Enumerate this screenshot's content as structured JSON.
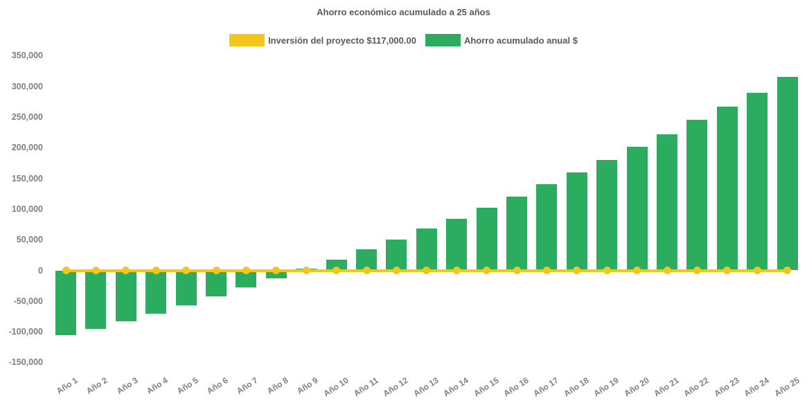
{
  "title": "Ahorro económico acumulado a 25 años",
  "legend": {
    "items": [
      {
        "label": "Inversión del proyecto $117,000.00",
        "color": "#F4C51B"
      },
      {
        "label": "Ahorro acumulado anual $",
        "color": "#2CAC5E"
      }
    ]
  },
  "colors": {
    "background": "#ffffff",
    "bar_green": "#2CAC5E",
    "line_yellow": "#F4C51B",
    "title_text": "#595959",
    "axis_text": "#7f7f7f"
  },
  "chart_data": {
    "type": "bar",
    "title": "Ahorro económico acumulado a 25 años",
    "categories": [
      "Año 1",
      "Año 2",
      "Año 3",
      "Año 4",
      "Año 5",
      "Año 6",
      "Año 7",
      "Año 8",
      "Año 9",
      "Año 10",
      "Año 11",
      "Año 12",
      "Año 13",
      "Año 14",
      "Año 15",
      "Año 16",
      "Año 17",
      "Año 18",
      "Año 19",
      "Año 20",
      "Año 21",
      "Año 22",
      "Año 23",
      "Año 24",
      "Año 25"
    ],
    "series": [
      {
        "name": "Inversión del proyecto $117,000.00",
        "type": "line",
        "color": "#F4C51B",
        "investment_amount_label": "$117,000.00",
        "values": [
          0,
          0,
          0,
          0,
          0,
          0,
          0,
          0,
          0,
          0,
          0,
          0,
          0,
          0,
          0,
          0,
          0,
          0,
          0,
          0,
          0,
          0,
          0,
          0,
          0
        ]
      },
      {
        "name": "Ahorro acumulado anual $",
        "type": "bar",
        "color": "#2CAC5E",
        "values": [
          -105000,
          -95500,
          -83000,
          -70000,
          -56500,
          -42500,
          -28000,
          -13500,
          2500,
          17500,
          34000,
          50500,
          68000,
          84500,
          102000,
          120000,
          140000,
          160000,
          180500,
          201000,
          222000,
          245000,
          267000,
          290000,
          315000
        ]
      }
    ],
    "xlabel": "",
    "ylabel": "",
    "ylim": [
      -150000,
      350000
    ],
    "ytick_interval": 50000,
    "yticks": [
      {
        "label": "350,000",
        "value": 350000
      },
      {
        "label": "300,000",
        "value": 300000
      },
      {
        "label": "250,000",
        "value": 250000
      },
      {
        "label": "200,000",
        "value": 200000
      },
      {
        "label": "150,000",
        "value": 150000
      },
      {
        "label": "100,000",
        "value": 100000
      },
      {
        "label": "50,000",
        "value": 50000
      },
      {
        "label": "0",
        "value": 0
      },
      {
        "label": "-50,000",
        "value": -50000
      },
      {
        "label": "-100,000",
        "value": -100000
      },
      {
        "label": "-150,000",
        "value": -150000
      }
    ],
    "grid": false,
    "legend_position": "top"
  }
}
